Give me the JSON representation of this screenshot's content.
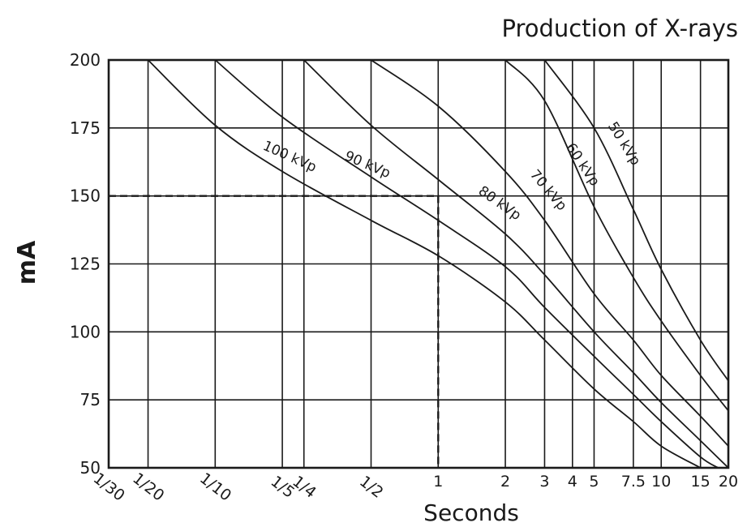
{
  "chart_data": {
    "type": "line",
    "title": "Production of X-rays",
    "xlabel": "Seconds",
    "ylabel": "mA",
    "x_scale": "log",
    "xlim": [
      0.0333,
      20
    ],
    "ylim": [
      50,
      200
    ],
    "grid": true,
    "x_ticks": [
      {
        "value": 0.0333,
        "label": "1/30"
      },
      {
        "value": 0.05,
        "label": "1/20"
      },
      {
        "value": 0.1,
        "label": "1/10"
      },
      {
        "value": 0.2,
        "label": "1/5"
      },
      {
        "value": 0.25,
        "label": "1/4"
      },
      {
        "value": 0.5,
        "label": "1/2"
      },
      {
        "value": 1,
        "label": "1"
      },
      {
        "value": 2,
        "label": "2"
      },
      {
        "value": 3,
        "label": "3"
      },
      {
        "value": 4,
        "label": "4"
      },
      {
        "value": 5,
        "label": "5"
      },
      {
        "value": 7.5,
        "label": "7.5"
      },
      {
        "value": 10,
        "label": "10"
      },
      {
        "value": 15,
        "label": "15"
      },
      {
        "value": 20,
        "label": "20"
      }
    ],
    "y_ticks": [
      50,
      75,
      100,
      125,
      150,
      175,
      200
    ],
    "series": [
      {
        "name": "100 kVp",
        "points": [
          [
            0.05,
            200
          ],
          [
            0.1,
            176
          ],
          [
            0.2,
            159
          ],
          [
            0.5,
            141
          ],
          [
            1,
            128
          ],
          [
            2,
            111
          ],
          [
            3,
            97
          ],
          [
            5,
            79
          ],
          [
            7.5,
            67
          ],
          [
            10,
            58
          ],
          [
            15,
            50
          ]
        ]
      },
      {
        "name": "90 kVp",
        "points": [
          [
            0.1,
            200
          ],
          [
            0.2,
            179
          ],
          [
            0.5,
            157
          ],
          [
            1,
            141
          ],
          [
            2,
            124
          ],
          [
            3,
            109
          ],
          [
            5,
            91
          ],
          [
            7.5,
            77
          ],
          [
            10,
            67
          ],
          [
            15,
            54
          ],
          [
            18,
            50
          ]
        ]
      },
      {
        "name": "80 kVp",
        "points": [
          [
            0.25,
            200
          ],
          [
            0.5,
            176
          ],
          [
            1,
            156
          ],
          [
            2,
            136
          ],
          [
            3,
            121
          ],
          [
            5,
            100
          ],
          [
            7.5,
            85
          ],
          [
            10,
            74
          ],
          [
            15,
            60
          ],
          [
            20,
            50
          ]
        ]
      },
      {
        "name": "70 kVp",
        "points": [
          [
            0.5,
            200
          ],
          [
            1,
            183
          ],
          [
            2,
            159
          ],
          [
            3,
            141
          ],
          [
            5,
            114
          ],
          [
            7.5,
            97
          ],
          [
            10,
            84
          ],
          [
            15,
            69
          ],
          [
            20,
            58
          ]
        ]
      },
      {
        "name": "60 kVp",
        "points": [
          [
            2,
            200
          ],
          [
            3,
            185
          ],
          [
            5,
            146
          ],
          [
            7.5,
            120
          ],
          [
            10,
            104
          ],
          [
            15,
            84
          ],
          [
            20,
            71
          ]
        ]
      },
      {
        "name": "50 kVp",
        "points": [
          [
            3,
            200
          ],
          [
            5,
            175
          ],
          [
            7.5,
            145
          ],
          [
            10,
            123
          ],
          [
            15,
            97
          ],
          [
            20,
            82
          ]
        ]
      }
    ],
    "reference": {
      "time": 1,
      "ma": 150
    },
    "curve_labels": [
      "100 kVp",
      "90 kVp",
      "80 kVp",
      "70 kVp",
      "60 kVp",
      "50 kVp"
    ]
  }
}
